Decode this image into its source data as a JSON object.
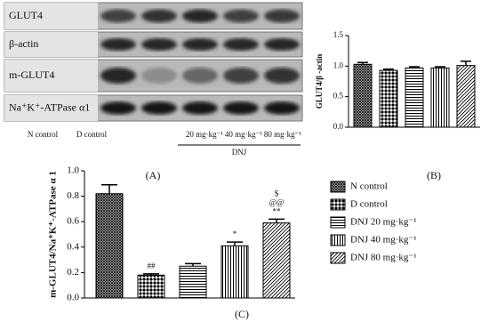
{
  "blot": {
    "rows": [
      "GLUT4",
      "β-actin",
      "m-GLUT4",
      "Na⁺K⁺-ATPase α1"
    ],
    "lanes": [
      "N control",
      "D control",
      "20 mg·kg⁻¹",
      "40 mg·kg⁻¹",
      "80 mg·kg⁻¹"
    ],
    "group": "DNJ",
    "panel": "(A)"
  },
  "chart_data": [
    {
      "type": "bar",
      "ylabel": "GLUT4/β -actin",
      "panel": "(B)",
      "values": [
        1.03,
        0.93,
        0.97,
        0.97,
        1.01
      ],
      "errors": [
        0.03,
        0.02,
        0.02,
        0.02,
        0.07
      ],
      "ylim": [
        0,
        1.5
      ],
      "yticks": [
        {
          "value": 0,
          "label": "0.0"
        },
        0.5,
        {
          "value": 1,
          "label": "1.0"
        },
        1.5
      ],
      "grid": false
    },
    {
      "type": "bar",
      "ylabel": "m-GLUT4/Na⁺K⁺-ATPase α 1",
      "panel": "(C)",
      "categories": [
        "N control",
        "D control",
        "DNJ 20 mg·kg⁻¹",
        "DNJ 40 mg·kg⁻¹",
        "DNJ 80 mg·kg⁻¹"
      ],
      "values": [
        0.82,
        0.18,
        0.25,
        0.41,
        0.59
      ],
      "errors": [
        0.07,
        0.01,
        0.02,
        0.03,
        0.03
      ],
      "annotations": [
        null,
        [
          "##"
        ],
        null,
        [
          "*"
        ],
        [
          "**",
          "@@",
          "$"
        ]
      ],
      "ylim": [
        0,
        1.0
      ],
      "yticks": [
        {
          "value": 0,
          "label": "0.0"
        },
        0.2,
        0.4,
        0.6,
        0.8,
        {
          "value": 1,
          "label": "1.0"
        }
      ],
      "grid": false
    }
  ]
}
